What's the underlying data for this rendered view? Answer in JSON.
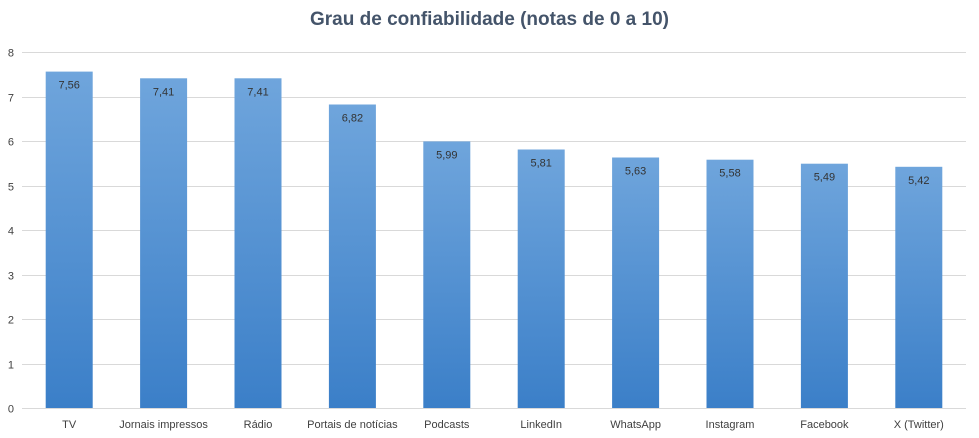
{
  "chart_data": {
    "type": "bar",
    "title": "Grau de confiabilidade (notas de 0 a 10)",
    "xlabel": "",
    "ylabel": "",
    "categories": [
      "TV",
      "Jornais impressos",
      "Rádio",
      "Portais de notícias",
      "Podcasts",
      "LinkedIn",
      "WhatsApp",
      "Instagram",
      "Facebook",
      "X (Twitter)"
    ],
    "values": [
      7.56,
      7.41,
      7.41,
      6.82,
      5.99,
      5.81,
      5.63,
      5.58,
      5.49,
      5.42
    ],
    "data_labels": [
      "7,56",
      "7,41",
      "7,41",
      "6,82",
      "5,99",
      "5,81",
      "5,63",
      "5,58",
      "5,49",
      "5,42"
    ],
    "ylim": [
      0,
      8
    ],
    "yticks": [
      0,
      1,
      2,
      3,
      4,
      5,
      6,
      7,
      8
    ],
    "grid": true,
    "legend": "none",
    "colors": {
      "bar_top": "#6fa5dc",
      "bar_bottom": "#3b7fc8",
      "grid": "#d9d9d9",
      "title": "#44546a",
      "text": "#404040"
    }
  }
}
